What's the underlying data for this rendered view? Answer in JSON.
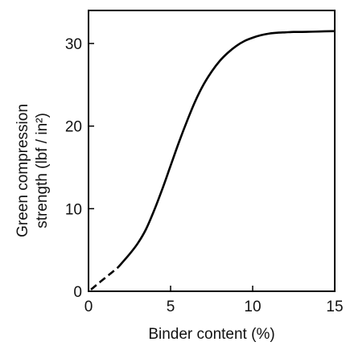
{
  "chart_data": {
    "type": "line",
    "xlabel": "Binder content (%)",
    "ylabel_line1": "Green compression",
    "ylabel_line2": "strength (lbf / in²)",
    "xlim": [
      0,
      15
    ],
    "ylim": [
      0,
      34
    ],
    "xticks": [
      0,
      5,
      10,
      15
    ],
    "yticks": [
      0,
      10,
      20,
      30
    ],
    "grid": false,
    "series": [
      {
        "segment": "dashed",
        "x": [
          0.15,
          0.5,
          1.0,
          1.5,
          1.8
        ],
        "y": [
          0.2,
          0.8,
          1.6,
          2.4,
          2.9
        ]
      },
      {
        "segment": "solid",
        "x": [
          1.8,
          2.5,
          3.0,
          3.5,
          4.0,
          4.5,
          5.0,
          5.5,
          6.0,
          6.5,
          7.0,
          7.5,
          8.0,
          8.5,
          9.0,
          9.5,
          10.0,
          10.5,
          11.0,
          11.5,
          12.0,
          12.5,
          13.0,
          14.0,
          15.0
        ],
        "y": [
          2.9,
          4.5,
          5.8,
          7.5,
          9.8,
          12.4,
          15.2,
          18.0,
          20.6,
          23.0,
          25.0,
          26.6,
          27.9,
          28.9,
          29.7,
          30.3,
          30.7,
          31.0,
          31.2,
          31.3,
          31.35,
          31.4,
          31.4,
          31.45,
          31.5
        ]
      }
    ],
    "line_color": "#000000"
  }
}
